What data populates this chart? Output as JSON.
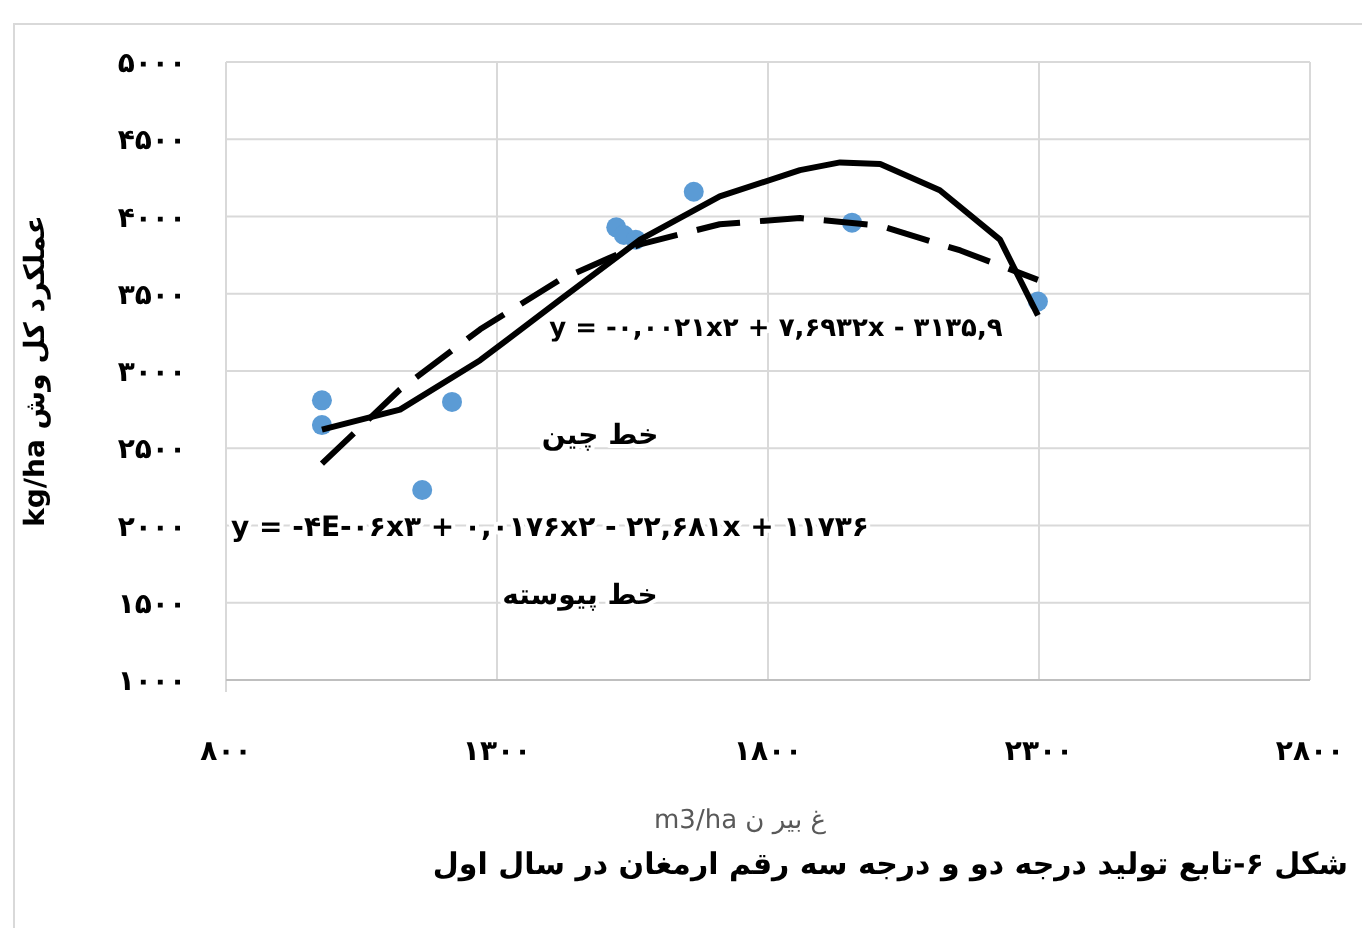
{
  "chart_data": {
    "type": "scatter",
    "title": "شکل ۶-تابع تولید درجه دو و درجه سه رقم ارمغان در سال اول",
    "xlabel": "غ بیر ن m3/ha",
    "ylabel": "عملکرد کل وش kg/ha",
    "annotations": [
      "y = -۰,۰۰۲۱x۲ + ۷,۶۹۳۲x - ۳۱۳۵,۹",
      "خط چین",
      "y = -۴E-۰۶x۳ + ۰,۰۱۷۶x۲ - ۲۲,۶۸۱x + ۱۱۷۳۶",
      "خط پیوسته"
    ],
    "xlim": [
      800,
      2800
    ],
    "ylim": [
      1000,
      5000
    ],
    "xticks": [
      {
        "value": 800,
        "label": "۸۰۰"
      },
      {
        "value": 1300,
        "label": "۱۳۰۰"
      },
      {
        "value": 1800,
        "label": "۱۸۰۰"
      },
      {
        "value": 2300,
        "label": "۲۳۰۰"
      },
      {
        "value": 2800,
        "label": "۲۸۰۰"
      }
    ],
    "yticks": [
      {
        "value": 1000,
        "label": "۱۰۰۰"
      },
      {
        "value": 1500,
        "label": "۱۵۰۰"
      },
      {
        "value": 2000,
        "label": "۲۰۰۰"
      },
      {
        "value": 2500,
        "label": "۲۵۰۰"
      },
      {
        "value": 3000,
        "label": "۳۰۰۰"
      },
      {
        "value": 3500,
        "label": "۳۵۰۰"
      },
      {
        "value": 4000,
        "label": "۴۰۰۰"
      },
      {
        "value": 4500,
        "label": "۴۵۰۰"
      },
      {
        "value": 5000,
        "label": "۵۰۰۰"
      }
    ],
    "grid": true,
    "series": [
      {
        "type": "scatter",
        "color": "#5b9bd5",
        "marker": "circle",
        "x": [
          977,
          977,
          1162,
          1217,
          1520,
          1534,
          1556,
          1663,
          1955,
          2298
        ],
        "values": [
          2810,
          2650,
          2230,
          2800,
          3930,
          3880,
          3850,
          4160,
          3960,
          3450
        ]
      },
      {
        "type": "line",
        "color": "#000000",
        "line_style": "dashed",
        "marker": "none",
        "x": [
          977,
          1121,
          1269,
          1416,
          1564,
          1711,
          1859,
          2007,
          2155,
          2298
        ],
        "values": [
          2400,
          2880,
          3270,
          3590,
          3820,
          3950,
          3990,
          3940,
          3780,
          3590
        ]
      },
      {
        "type": "line",
        "color": "#000000",
        "line_style": "solid",
        "marker": "none",
        "x": [
          977,
          1121,
          1269,
          1416,
          1564,
          1711,
          1859,
          1933,
          2007,
          2117,
          2228,
          2298
        ],
        "values": [
          2620,
          2750,
          3070,
          3460,
          3850,
          4130,
          4300,
          4350,
          4340,
          4170,
          3850,
          3360
        ]
      }
    ]
  }
}
